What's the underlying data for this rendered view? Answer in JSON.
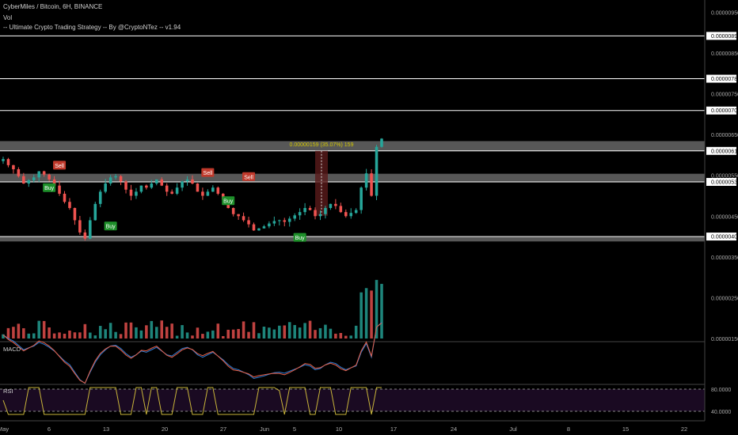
{
  "header": {
    "symbol_line": "CyberMiles / Bitcoin, 6H, BINANCE",
    "vol_label": "Vol",
    "strategy_line": "-- Ultimate Crypto Trading Strategy -- By @CryptoNTez -- v1.94"
  },
  "panes": {
    "macd_label": "MACD",
    "rsi_label": "RSI"
  },
  "colors": {
    "background": "#000000",
    "up": "#26a69a",
    "down": "#ef5350",
    "zone": "#9e9e9e",
    "level_line": "#ffffff",
    "measure_text": "#d4c800",
    "measure_box": "#5a1a1a",
    "rsi_line": "#c9b53a",
    "rsi_band": "#1a0a22",
    "macd_line": "#2f7fd8",
    "signal_line": "#e65e45",
    "buy": "#1e8f2a",
    "sell": "#c0392b"
  },
  "chart_data": {
    "type": "candlestick",
    "title": "CyberMiles / Bitcoin, 6H, BINANCE",
    "x_axis": {
      "ticks": [
        "May",
        "6",
        "13",
        "20",
        "27",
        "Jun",
        "5",
        "10",
        "17",
        "24",
        "Jul",
        "8",
        "15",
        "22"
      ]
    },
    "y_axis": {
      "ticks": [
        "0.00000950",
        "0.00000850",
        "0.00000750",
        "0.00000650",
        "0.00000550",
        "0.00000450",
        "0.00000350",
        "0.00000250",
        "0.00000150"
      ],
      "range": [
        1.5e-06,
        9.8e-06
      ]
    },
    "price_levels": [
      "0.00000892",
      "0.00000787",
      "0.00000709",
      "0.00000610",
      "0.00000534",
      "0.00000400"
    ],
    "zones": [
      [
        6.1e-06,
        6.34e-06
      ],
      [
        5.34e-06,
        5.54e-06
      ],
      [
        3.88e-06,
        4e-06
      ]
    ],
    "measure": {
      "label": "0.00000159 (35.07%) 159",
      "from": 4.51e-06,
      "to": 6.1e-06
    },
    "signals": [
      {
        "type": "Buy",
        "label": "Buy",
        "price": 5.19e-06
      },
      {
        "type": "Sell",
        "label": "Sell",
        "price": 5.74e-06
      },
      {
        "type": "Buy",
        "label": "Buy",
        "price": 4.25e-06
      },
      {
        "type": "Sell",
        "label": "Sell",
        "price": 5.56e-06
      },
      {
        "type": "Buy",
        "label": "Buy",
        "price": 4.87e-06
      },
      {
        "type": "Sell",
        "label": "Sell",
        "price": 5.46e-06
      },
      {
        "type": "Buy",
        "label": "Buy",
        "price": 3.97e-06
      }
    ],
    "rsi": {
      "ticks": [
        "80.0000",
        "40.0000"
      ]
    },
    "close_trend": [
      5.9e-06,
      5.75e-06,
      5.65e-06,
      5.48e-06,
      5.3e-06,
      5.38e-06,
      5.45e-06,
      5.6e-06,
      5.52e-06,
      5.4e-06,
      5.25e-06,
      5.05e-06,
      4.85e-06,
      4.7e-06,
      4.4e-06,
      4.1e-06,
      3.95e-06,
      4.4e-06,
      4.8e-06,
      5.1e-06,
      5.3e-06,
      5.45e-06,
      5.48e-06,
      5.35e-06,
      5.15e-06,
      5e-06,
      5.1e-06,
      5.25e-06,
      5.2e-06,
      5.3e-06,
      5.4e-06,
      5.25e-06,
      5.1e-06,
      5.05e-06,
      5.2e-06,
      5.35e-06,
      5.4e-06,
      5.3e-06,
      5.1e-06,
      5e-06,
      5.1e-06,
      5.2e-06,
      5.05e-06,
      4.9e-06,
      4.7e-06,
      4.55e-06,
      4.5e-06,
      4.4e-06,
      4.3e-06,
      4.15e-06,
      4.2e-06,
      4.25e-06,
      4.32e-06,
      4.38e-06,
      4.4e-06,
      4.36e-06,
      4.44e-06,
      4.52e-06,
      4.6e-06,
      4.7e-06,
      4.65e-06,
      4.5e-06,
      4.55e-06,
      4.7e-06,
      4.8e-06,
      4.75e-06,
      4.6e-06,
      4.5e-06,
      4.58e-06,
      4.65e-06,
      5.2e-06,
      5.55e-06,
      5e-06,
      6.2e-06,
      6.4e-06
    ]
  }
}
